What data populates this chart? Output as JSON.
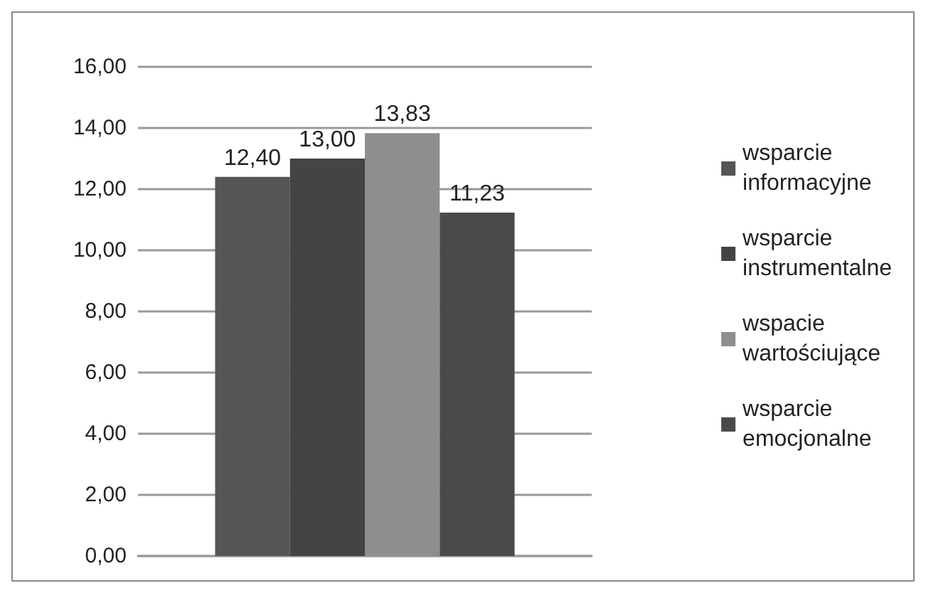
{
  "chart_data": {
    "type": "bar",
    "categories": [
      null
    ],
    "series": [
      {
        "name": "wsparcie informacyjne",
        "color": "#555555",
        "values": [
          12.4
        ],
        "value_labels": [
          "12,40"
        ]
      },
      {
        "name": "wsparcie instrumentalne",
        "color": "#444444",
        "values": [
          13.0
        ],
        "value_labels": [
          "13,00"
        ]
      },
      {
        "name": "wspacie wartościujące",
        "color": "#8e8e8e",
        "values": [
          13.83
        ],
        "value_labels": [
          "13,83"
        ]
      },
      {
        "name": "wsparcie emocjonalne",
        "color": "#4a4a4a",
        "values": [
          11.23
        ],
        "value_labels": [
          "11,23"
        ]
      }
    ],
    "ylim": [
      0,
      16
    ],
    "yticks": [
      {
        "value": 0,
        "label": "0,00"
      },
      {
        "value": 2,
        "label": "2,00"
      },
      {
        "value": 4,
        "label": "4,00"
      },
      {
        "value": 6,
        "label": "6,00"
      },
      {
        "value": 8,
        "label": "8,00"
      },
      {
        "value": 10,
        "label": "10,00"
      },
      {
        "value": 12,
        "label": "12,00"
      },
      {
        "value": 14,
        "label": "14,00"
      },
      {
        "value": 16,
        "label": "16,00"
      }
    ],
    "grid": "y",
    "legend": "right"
  }
}
